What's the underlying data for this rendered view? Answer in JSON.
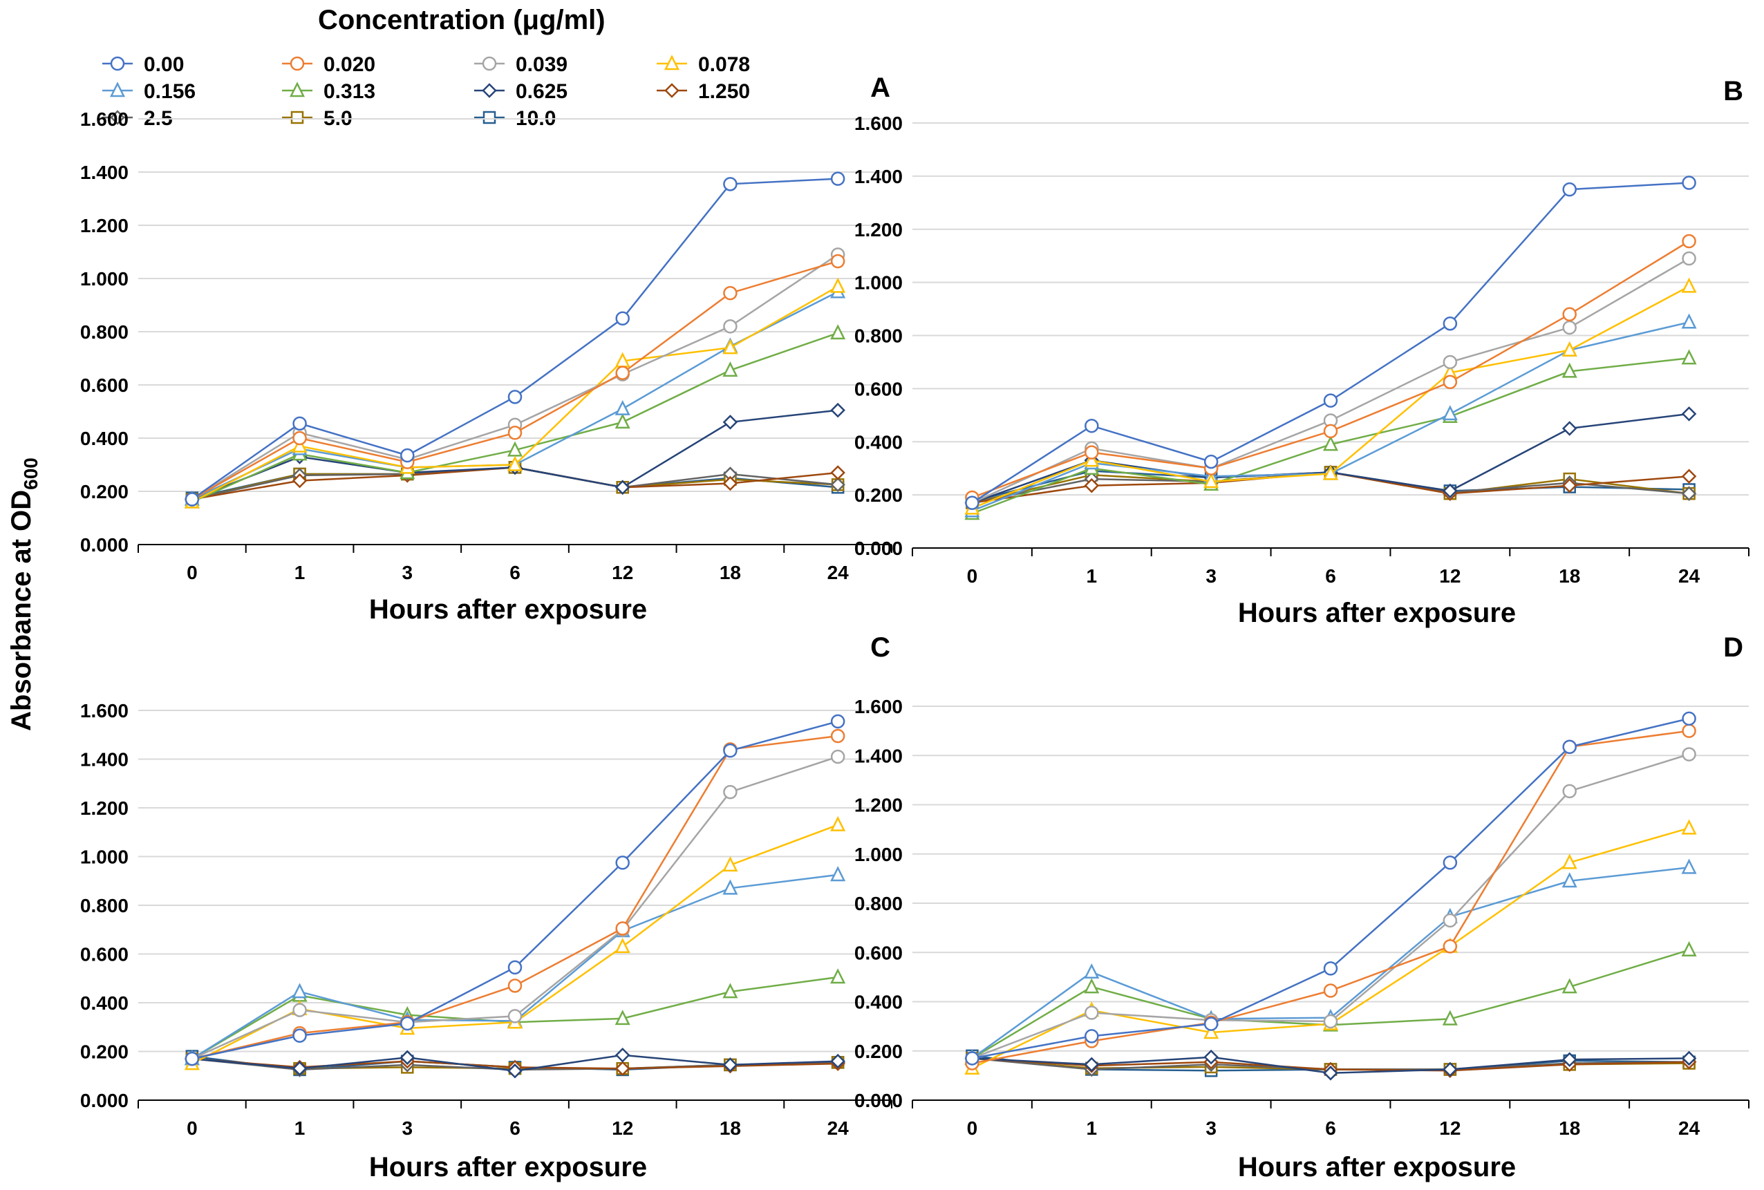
{
  "figure": {
    "legend_title": "Concentration (μg/ml)",
    "ylabel_main": "Absorbance at OD",
    "ylabel_sub": "600"
  },
  "legend": [
    {
      "label": "0.00",
      "color": "#4472C4",
      "marker": "circle"
    },
    {
      "label": "0.020",
      "color": "#ED7D31",
      "marker": "circle"
    },
    {
      "label": "0.039",
      "color": "#A5A5A5",
      "marker": "circle"
    },
    {
      "label": "0.078",
      "color": "#FFC000",
      "marker": "triangle"
    },
    {
      "label": "0.156",
      "color": "#5B9BD5",
      "marker": "triangle"
    },
    {
      "label": "0.313",
      "color": "#70AD47",
      "marker": "triangle"
    },
    {
      "label": "0.625",
      "color": "#264478",
      "marker": "diamond"
    },
    {
      "label": "1.250",
      "color": "#9E480E",
      "marker": "diamond"
    },
    {
      "label": "2.5",
      "color": "#636363",
      "marker": "diamond"
    },
    {
      "label": "5.0",
      "color": "#997300",
      "marker": "square"
    },
    {
      "label": "10.0",
      "color": "#255E91",
      "marker": "square"
    }
  ],
  "chart_data": [
    {
      "type": "line",
      "panel": "A",
      "xlabel": "Hours after exposure",
      "categories": [
        "0",
        "1",
        "3",
        "6",
        "12",
        "18",
        "24"
      ],
      "ylim": [
        0,
        1.6
      ],
      "yticks": [
        "0.000",
        "0.200",
        "0.400",
        "0.600",
        "0.800",
        "1.000",
        "1.200",
        "1.400",
        "1.600"
      ],
      "series": [
        {
          "name": "0.00",
          "values": [
            0.17,
            0.455,
            0.335,
            0.555,
            0.85,
            1.355,
            1.375
          ]
        },
        {
          "name": "0.020",
          "values": [
            0.17,
            0.4,
            0.31,
            0.42,
            0.645,
            0.945,
            1.065
          ]
        },
        {
          "name": "0.039",
          "values": [
            0.17,
            0.42,
            0.32,
            0.45,
            0.64,
            0.82,
            1.09
          ]
        },
        {
          "name": "0.078",
          "values": [
            0.16,
            0.37,
            0.29,
            0.3,
            0.69,
            0.74,
            0.97
          ]
        },
        {
          "name": "0.156",
          "values": [
            0.17,
            0.36,
            0.29,
            0.3,
            0.51,
            0.745,
            0.95
          ]
        },
        {
          "name": "0.313",
          "values": [
            0.16,
            0.34,
            0.27,
            0.355,
            0.46,
            0.655,
            0.795
          ]
        },
        {
          "name": "0.625",
          "values": [
            0.17,
            0.33,
            0.27,
            0.29,
            0.215,
            0.46,
            0.505
          ]
        },
        {
          "name": "1.250",
          "values": [
            0.17,
            0.24,
            0.26,
            0.29,
            0.215,
            0.23,
            0.27
          ]
        },
        {
          "name": "2.5",
          "values": [
            0.17,
            0.26,
            0.265,
            0.29,
            0.215,
            0.265,
            0.225
          ]
        },
        {
          "name": "5.0",
          "values": [
            0.17,
            0.265,
            0.265,
            0.29,
            0.215,
            0.245,
            0.225
          ]
        },
        {
          "name": "10.0",
          "values": [
            0.175,
            0.265,
            0.265,
            0.29,
            0.215,
            0.25,
            0.215
          ]
        }
      ]
    },
    {
      "type": "line",
      "panel": "B",
      "xlabel": "Hours after exposure",
      "categories": [
        "0",
        "1",
        "3",
        "6",
        "12",
        "18",
        "24"
      ],
      "ylim": [
        0,
        1.6
      ],
      "yticks": [
        "0.000",
        "0.200",
        "0.400",
        "0.600",
        "0.800",
        "1.000",
        "1.200",
        "1.400",
        "1.600"
      ],
      "series": [
        {
          "name": "0.00",
          "values": [
            0.17,
            0.46,
            0.325,
            0.555,
            0.845,
            1.35,
            1.375
          ]
        },
        {
          "name": "0.020",
          "values": [
            0.19,
            0.36,
            0.3,
            0.44,
            0.625,
            0.88,
            1.155
          ]
        },
        {
          "name": "0.039",
          "values": [
            0.17,
            0.375,
            0.3,
            0.48,
            0.7,
            0.83,
            1.09
          ]
        },
        {
          "name": "0.078",
          "values": [
            0.15,
            0.33,
            0.25,
            0.28,
            0.66,
            0.745,
            0.985
          ]
        },
        {
          "name": "0.156",
          "values": [
            0.14,
            0.32,
            0.27,
            0.28,
            0.505,
            0.745,
            0.85
          ]
        },
        {
          "name": "0.313",
          "values": [
            0.13,
            0.3,
            0.24,
            0.39,
            0.495,
            0.665,
            0.715
          ]
        },
        {
          "name": "0.625",
          "values": [
            0.17,
            0.33,
            0.265,
            0.285,
            0.215,
            0.45,
            0.505
          ]
        },
        {
          "name": "1.250",
          "values": [
            0.17,
            0.235,
            0.245,
            0.285,
            0.205,
            0.235,
            0.27
          ]
        },
        {
          "name": "2.5",
          "values": [
            0.17,
            0.26,
            0.25,
            0.285,
            0.21,
            0.245,
            0.205
          ]
        },
        {
          "name": "5.0",
          "values": [
            0.17,
            0.275,
            0.25,
            0.285,
            0.205,
            0.26,
            0.205
          ]
        },
        {
          "name": "10.0",
          "values": [
            0.175,
            0.29,
            0.265,
            0.285,
            0.215,
            0.23,
            0.22
          ]
        }
      ]
    },
    {
      "type": "line",
      "panel": "C",
      "xlabel": "Hours after exposure",
      "categories": [
        "0",
        "1",
        "3",
        "6",
        "12",
        "18",
        "24"
      ],
      "ylim": [
        0,
        1.6
      ],
      "yticks": [
        "0.000",
        "0.200",
        "0.400",
        "0.600",
        "0.800",
        "1.000",
        "1.200",
        "1.400",
        "1.600"
      ],
      "series": [
        {
          "name": "0.00",
          "values": [
            0.17,
            0.265,
            0.315,
            0.545,
            0.975,
            1.435,
            1.555
          ]
        },
        {
          "name": "0.020",
          "values": [
            0.17,
            0.275,
            0.32,
            0.47,
            0.705,
            1.44,
            1.495
          ]
        },
        {
          "name": "0.039",
          "values": [
            0.17,
            0.37,
            0.32,
            0.345,
            0.7,
            1.265,
            1.41
          ]
        },
        {
          "name": "0.078",
          "values": [
            0.15,
            0.375,
            0.295,
            0.32,
            0.63,
            0.965,
            1.13
          ]
        },
        {
          "name": "0.156",
          "values": [
            0.17,
            0.445,
            0.33,
            0.325,
            0.695,
            0.87,
            0.925
          ]
        },
        {
          "name": "0.313",
          "values": [
            0.17,
            0.43,
            0.35,
            0.32,
            0.335,
            0.445,
            0.505
          ]
        },
        {
          "name": "0.625",
          "values": [
            0.17,
            0.13,
            0.175,
            0.12,
            0.185,
            0.145,
            0.16
          ]
        },
        {
          "name": "1.250",
          "values": [
            0.17,
            0.135,
            0.16,
            0.135,
            0.13,
            0.14,
            0.15
          ]
        },
        {
          "name": "2.5",
          "values": [
            0.17,
            0.125,
            0.145,
            0.125,
            0.13,
            0.145,
            0.155
          ]
        },
        {
          "name": "5.0",
          "values": [
            0.17,
            0.13,
            0.135,
            0.13,
            0.13,
            0.145,
            0.155
          ]
        },
        {
          "name": "10.0",
          "values": [
            0.18,
            0.125,
            0.16,
            0.135,
            0.125,
            0.145,
            0.155
          ]
        }
      ]
    },
    {
      "type": "line",
      "panel": "D",
      "xlabel": "Hours after exposure",
      "categories": [
        "0",
        "1",
        "3",
        "6",
        "12",
        "18",
        "24"
      ],
      "ylim": [
        0,
        1.6
      ],
      "yticks": [
        "0.000",
        "0.200",
        "0.400",
        "0.600",
        "0.800",
        "1.000",
        "1.200",
        "1.400",
        "1.600"
      ],
      "series": [
        {
          "name": "0.00",
          "values": [
            0.17,
            0.26,
            0.31,
            0.535,
            0.965,
            1.435,
            1.55
          ]
        },
        {
          "name": "0.020",
          "values": [
            0.15,
            0.24,
            0.315,
            0.445,
            0.625,
            1.435,
            1.5
          ]
        },
        {
          "name": "0.039",
          "values": [
            0.17,
            0.355,
            0.325,
            0.32,
            0.73,
            1.255,
            1.405
          ]
        },
        {
          "name": "0.078",
          "values": [
            0.13,
            0.365,
            0.275,
            0.31,
            0.625,
            0.965,
            1.105
          ]
        },
        {
          "name": "0.156",
          "values": [
            0.17,
            0.52,
            0.33,
            0.335,
            0.745,
            0.89,
            0.945
          ]
        },
        {
          "name": "0.313",
          "values": [
            0.17,
            0.46,
            0.33,
            0.305,
            0.33,
            0.46,
            0.61
          ]
        },
        {
          "name": "0.625",
          "values": [
            0.17,
            0.145,
            0.175,
            0.11,
            0.125,
            0.165,
            0.17
          ]
        },
        {
          "name": "1.250",
          "values": [
            0.17,
            0.14,
            0.155,
            0.125,
            0.12,
            0.145,
            0.155
          ]
        },
        {
          "name": "2.5",
          "values": [
            0.17,
            0.125,
            0.145,
            0.125,
            0.125,
            0.15,
            0.155
          ]
        },
        {
          "name": "5.0",
          "values": [
            0.17,
            0.13,
            0.135,
            0.125,
            0.125,
            0.145,
            0.15
          ]
        },
        {
          "name": "10.0",
          "values": [
            0.18,
            0.125,
            0.12,
            0.125,
            0.125,
            0.16,
            0.155
          ]
        }
      ]
    }
  ]
}
